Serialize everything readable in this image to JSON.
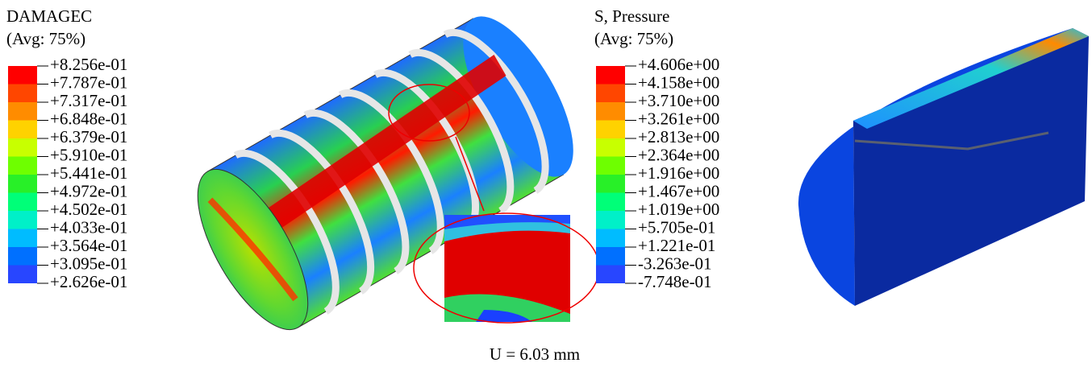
{
  "legends": [
    {
      "title": "DAMAGEC",
      "subtitle": "(Avg: 75%)",
      "labels": [
        "+8.256e-01",
        "+7.787e-01",
        "+7.317e-01",
        "+6.848e-01",
        "+6.379e-01",
        "+5.910e-01",
        "+5.441e-01",
        "+4.972e-01",
        "+4.502e-01",
        "+4.033e-01",
        "+3.564e-01",
        "+3.095e-01",
        "+2.626e-01"
      ]
    },
    {
      "title": "S, Pressure",
      "subtitle": "(Avg: 75%)",
      "labels": [
        "+4.606e+00",
        "+4.158e+00",
        "+3.710e+00",
        "+3.261e+00",
        "+2.813e+00",
        "+2.364e+00",
        "+1.916e+00",
        "+1.467e+00",
        "+1.019e+00",
        "+5.705e-01",
        "+1.221e-01",
        "-3.263e-01",
        "-7.748e-01"
      ]
    }
  ],
  "colors": [
    "#ff0000",
    "#ff4600",
    "#ff8c00",
    "#ffd200",
    "#c8ff00",
    "#6eff00",
    "#28f028",
    "#00ff78",
    "#00f0c8",
    "#00bcff",
    "#0070ff",
    "#2846ff",
    "#0000ff"
  ],
  "caption": "U = 6.03 mm"
}
